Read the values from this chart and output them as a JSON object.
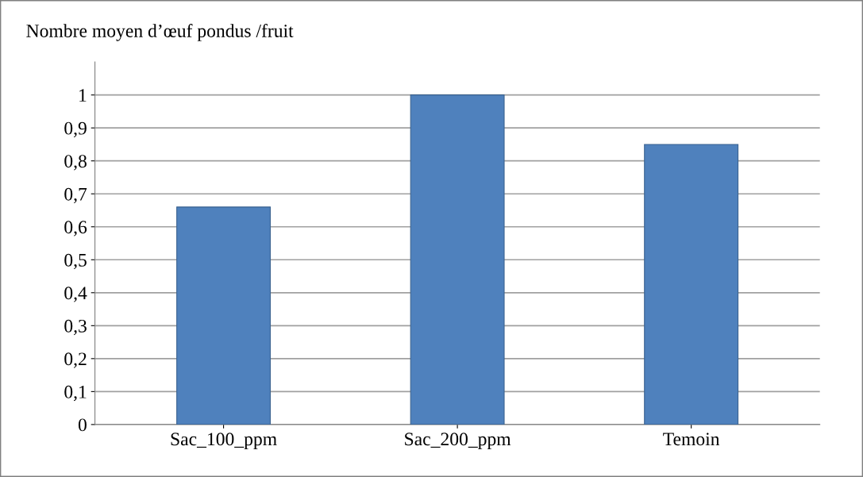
{
  "chart_data": {
    "type": "bar",
    "title": "Nombre moyen d’œuf pondus /fruit",
    "categories": [
      "Sac_100_ppm",
      "Sac_200_ppm",
      "Temoin"
    ],
    "values": [
      0.66,
      1.0,
      0.85
    ],
    "color": "#4f81bd",
    "ylim": [
      0,
      1.1
    ],
    "yticks": [
      {
        "value": 0,
        "label": "0"
      },
      {
        "value": 0.1,
        "label": "0,1"
      },
      {
        "value": 0.2,
        "label": "0,2"
      },
      {
        "value": 0.3,
        "label": "0,3"
      },
      {
        "value": 0.4,
        "label": "0,4"
      },
      {
        "value": 0.5,
        "label": "0,5"
      },
      {
        "value": 0.6,
        "label": "0,6"
      },
      {
        "value": 0.7,
        "label": "0,7"
      },
      {
        "value": 0.8,
        "label": "0,8"
      },
      {
        "value": 0.9,
        "label": "0,9"
      },
      {
        "value": 1,
        "label": "1"
      }
    ],
    "grid": "y"
  }
}
